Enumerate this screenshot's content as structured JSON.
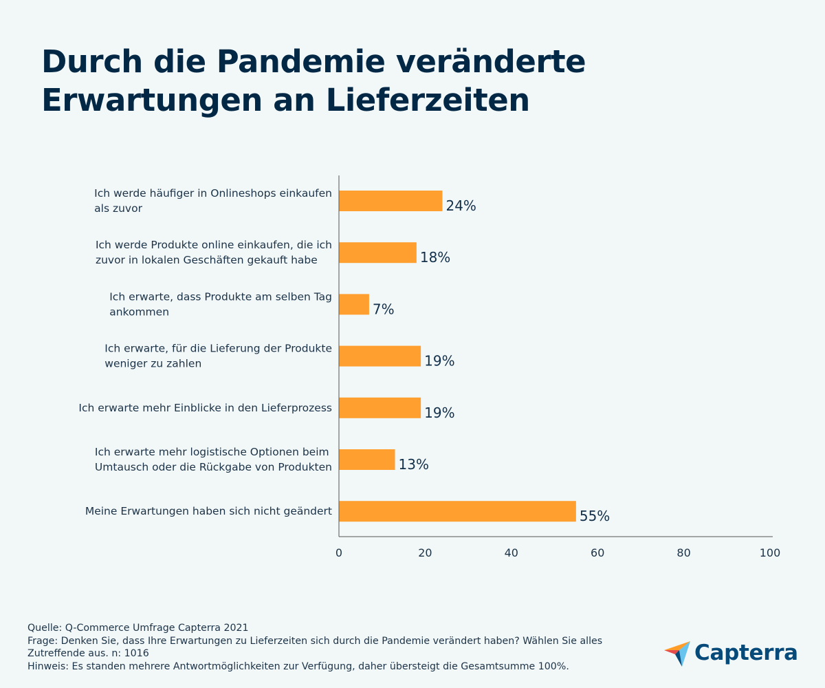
{
  "title_lines": [
    "Durch die Pandemie veränderte",
    "Erwartungen an Lieferzeiten"
  ],
  "chart_data": {
    "type": "bar",
    "orientation": "horizontal",
    "title": "Durch die Pandemie veränderte Erwartungen an Lieferzeiten",
    "xlabel": "",
    "ylabel": "",
    "xlim": [
      0,
      100
    ],
    "x_ticks": [
      "0",
      "20",
      "40",
      "60",
      "80",
      "100"
    ],
    "grid": false,
    "bar_color": "#ff9f2f",
    "categories": [
      [
        "Ich werde häufiger in Onlineshops einkaufen",
        "als zuvor"
      ],
      [
        "Ich werde Produkte online einkaufen, die ich",
        "zuvor in lokalen Geschäften gekauft habe"
      ],
      [
        "Ich erwarte, dass Produkte am selben Tag",
        "ankommen"
      ],
      [
        "Ich erwarte, für die Lieferung der Produkte",
        "weniger zu zahlen"
      ],
      [
        "Ich erwarte mehr Einblicke in den Lieferprozess"
      ],
      [
        "Ich erwarte mehr logistische Optionen beim",
        "Umtausch oder die Rückgabe von Produkten"
      ],
      [
        "Meine Erwartungen haben sich nicht geändert"
      ]
    ],
    "values": [
      24,
      18,
      7,
      19,
      19,
      13,
      55
    ],
    "value_labels": [
      "24%",
      "18%",
      "7%",
      "19%",
      "19%",
      "13%",
      "55%"
    ]
  },
  "footer": {
    "source": "Quelle: Q-Commerce Umfrage Capterra 2021",
    "question_line1": "Frage: Denken Sie, dass Ihre Erwartungen zu Lieferzeiten sich durch die Pandemie verändert haben? Wählen Sie alles",
    "question_line2": "Zutreffende aus. n: 1016",
    "note": "Hinweis: Es standen mehrere Antwortmöglichkeiten zur Verfügung, daher übersteigt die Gesamtsumme 100%."
  },
  "logo": {
    "name": "Capterra",
    "colors": {
      "orange": "#ff9d28",
      "red": "#e54b4b",
      "light_blue": "#67c4ee",
      "dark_blue": "#064a7a"
    }
  }
}
